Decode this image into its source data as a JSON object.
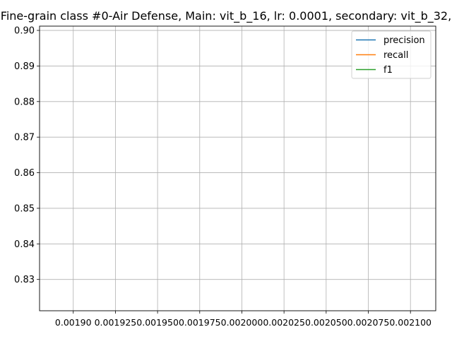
{
  "chart_data": {
    "type": "line",
    "title": "Fine-grain class #0-Air Defense, Main: vit_b_16, lr: 0.0001, secondary: vit_b_32,",
    "xlabel": "",
    "ylabel": "",
    "xlim": [
      0.00188,
      0.002115
    ],
    "ylim": [
      0.8212,
      0.9012
    ],
    "x_ticks": [
      0.0019,
      0.001925,
      0.00195,
      0.001975,
      0.002,
      0.002025,
      0.00205,
      0.002075,
      0.0021
    ],
    "x_tick_labels": [
      "0.00190",
      "0.001925",
      "0.001950",
      "0.001975",
      "0.002000",
      "0.002025",
      "0.002050",
      "0.002075",
      "0.002100"
    ],
    "y_ticks": [
      0.83,
      0.84,
      0.85,
      0.86,
      0.87,
      0.88,
      0.89,
      0.9
    ],
    "y_tick_labels": [
      "0.83",
      "0.84",
      "0.85",
      "0.86",
      "0.87",
      "0.88",
      "0.89",
      "0.90"
    ],
    "grid": true,
    "legend_position": "upper right",
    "series": [
      {
        "name": "precision",
        "color": "#1f77b4",
        "x": [],
        "y": []
      },
      {
        "name": "recall",
        "color": "#ff7f0e",
        "x": [],
        "y": []
      },
      {
        "name": "f1",
        "color": "#2ca02c",
        "x": [],
        "y": []
      }
    ]
  }
}
